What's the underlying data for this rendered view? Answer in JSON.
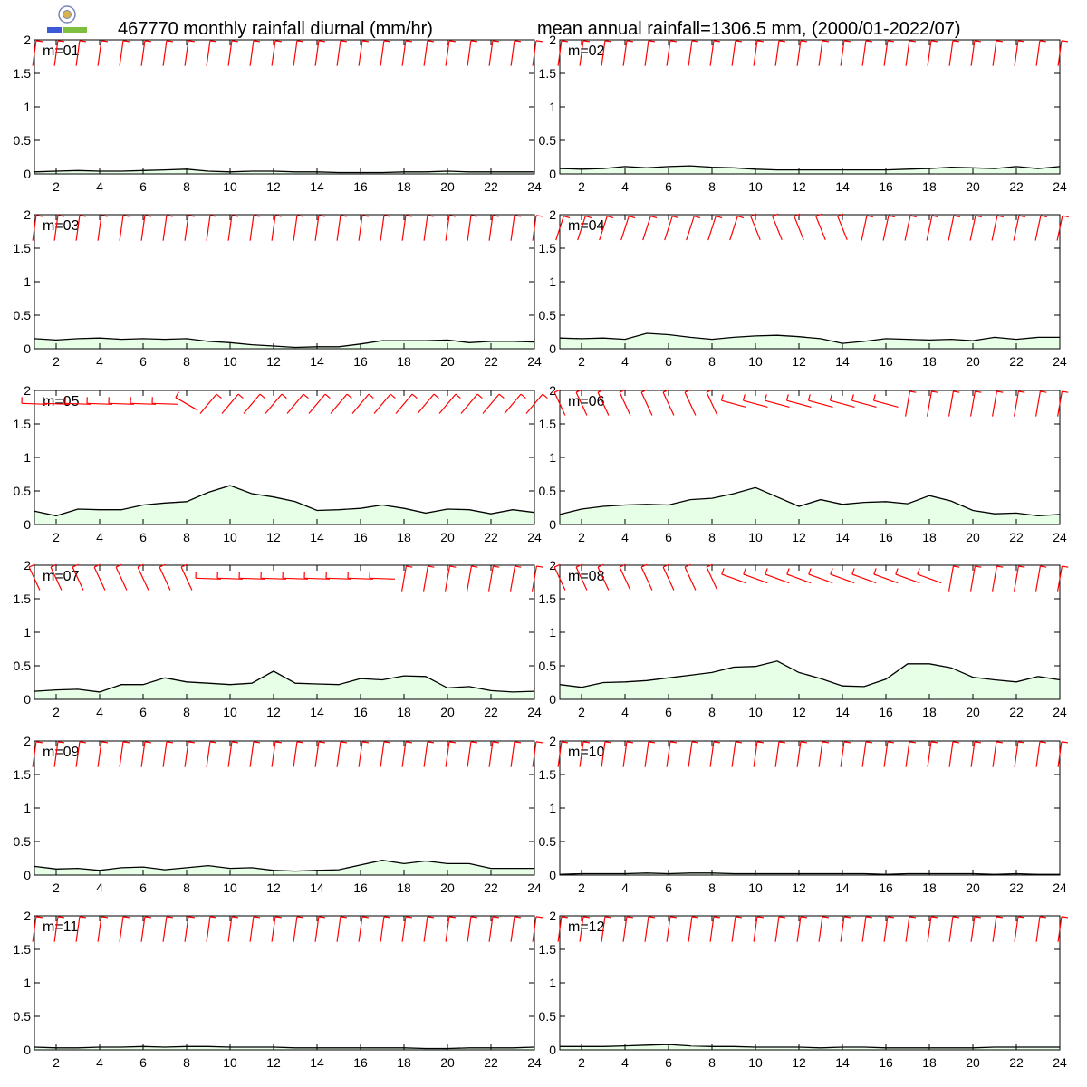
{
  "header": {
    "title_left": "467770 monthly rainfall diurnal (mm/hr)",
    "title_right": "mean annual rainfall=1306.5 mm, (2000/01-2022/07)"
  },
  "colors": {
    "fill": "#e6ffe6",
    "line": "#000000",
    "barb": "#ff0000"
  },
  "chart_data": {
    "type": "area",
    "x": [
      1,
      2,
      3,
      4,
      5,
      6,
      7,
      8,
      9,
      10,
      11,
      12,
      13,
      14,
      15,
      16,
      17,
      18,
      19,
      20,
      21,
      22,
      23,
      24
    ],
    "xticks": [
      2,
      4,
      6,
      8,
      10,
      12,
      14,
      16,
      18,
      20,
      22,
      24
    ],
    "yticks": [
      0,
      0.5,
      1,
      1.5,
      2
    ],
    "xlim": [
      1,
      24
    ],
    "ylim": [
      0,
      2
    ],
    "grid": false,
    "overlay": "red wind barbs near top of each panel",
    "panels": [
      {
        "label": "m=01",
        "values": [
          0.03,
          0.04,
          0.05,
          0.04,
          0.04,
          0.05,
          0.06,
          0.07,
          0.04,
          0.03,
          0.04,
          0.04,
          0.03,
          0.03,
          0.02,
          0.02,
          0.02,
          0.03,
          0.03,
          0.04,
          0.03,
          0.03,
          0.03,
          0.03
        ]
      },
      {
        "label": "m=02",
        "values": [
          0.08,
          0.07,
          0.08,
          0.11,
          0.09,
          0.11,
          0.12,
          0.1,
          0.09,
          0.07,
          0.06,
          0.06,
          0.06,
          0.06,
          0.06,
          0.06,
          0.07,
          0.08,
          0.1,
          0.09,
          0.08,
          0.11,
          0.08,
          0.11
        ]
      },
      {
        "label": "m=03",
        "values": [
          0.15,
          0.13,
          0.15,
          0.16,
          0.14,
          0.15,
          0.14,
          0.15,
          0.11,
          0.09,
          0.06,
          0.04,
          0.02,
          0.03,
          0.03,
          0.07,
          0.12,
          0.12,
          0.12,
          0.13,
          0.09,
          0.11,
          0.11,
          0.1
        ]
      },
      {
        "label": "m=04",
        "values": [
          0.16,
          0.15,
          0.16,
          0.14,
          0.23,
          0.21,
          0.17,
          0.14,
          0.17,
          0.19,
          0.2,
          0.18,
          0.15,
          0.08,
          0.11,
          0.15,
          0.14,
          0.13,
          0.14,
          0.12,
          0.17,
          0.14,
          0.17,
          0.17
        ]
      },
      {
        "label": "m=05",
        "values": [
          0.2,
          0.13,
          0.23,
          0.22,
          0.22,
          0.29,
          0.32,
          0.34,
          0.48,
          0.58,
          0.46,
          0.41,
          0.34,
          0.21,
          0.22,
          0.24,
          0.29,
          0.24,
          0.17,
          0.23,
          0.22,
          0.16,
          0.22,
          0.18
        ]
      },
      {
        "label": "m=06",
        "values": [
          0.15,
          0.23,
          0.27,
          0.29,
          0.3,
          0.29,
          0.37,
          0.39,
          0.46,
          0.55,
          0.41,
          0.27,
          0.37,
          0.3,
          0.33,
          0.34,
          0.31,
          0.43,
          0.35,
          0.21,
          0.16,
          0.17,
          0.13,
          0.15
        ]
      },
      {
        "label": "m=07",
        "values": [
          0.12,
          0.14,
          0.15,
          0.11,
          0.22,
          0.22,
          0.32,
          0.26,
          0.24,
          0.22,
          0.24,
          0.42,
          0.24,
          0.23,
          0.22,
          0.31,
          0.29,
          0.35,
          0.34,
          0.17,
          0.19,
          0.13,
          0.11,
          0.12
        ]
      },
      {
        "label": "m=08",
        "values": [
          0.22,
          0.18,
          0.25,
          0.26,
          0.28,
          0.32,
          0.36,
          0.4,
          0.48,
          0.49,
          0.57,
          0.4,
          0.31,
          0.2,
          0.19,
          0.3,
          0.53,
          0.53,
          0.47,
          0.33,
          0.29,
          0.26,
          0.34,
          0.29
        ]
      },
      {
        "label": "m=09",
        "values": [
          0.13,
          0.09,
          0.1,
          0.07,
          0.11,
          0.12,
          0.08,
          0.11,
          0.14,
          0.1,
          0.11,
          0.07,
          0.06,
          0.07,
          0.08,
          0.15,
          0.22,
          0.17,
          0.21,
          0.17,
          0.17,
          0.1,
          0.1,
          0.1
        ]
      },
      {
        "label": "m=10",
        "values": [
          0.01,
          0.02,
          0.02,
          0.02,
          0.03,
          0.02,
          0.03,
          0.03,
          0.02,
          0.02,
          0.02,
          0.02,
          0.02,
          0.02,
          0.02,
          0.01,
          0.02,
          0.02,
          0.02,
          0.02,
          0.01,
          0.02,
          0.01,
          0.01
        ]
      },
      {
        "label": "m=11",
        "values": [
          0.04,
          0.03,
          0.03,
          0.04,
          0.04,
          0.05,
          0.04,
          0.05,
          0.05,
          0.04,
          0.04,
          0.04,
          0.03,
          0.03,
          0.03,
          0.03,
          0.03,
          0.03,
          0.02,
          0.02,
          0.03,
          0.03,
          0.03,
          0.04
        ]
      },
      {
        "label": "m=12",
        "values": [
          0.05,
          0.05,
          0.05,
          0.06,
          0.07,
          0.08,
          0.06,
          0.05,
          0.05,
          0.04,
          0.04,
          0.04,
          0.03,
          0.04,
          0.04,
          0.03,
          0.03,
          0.03,
          0.03,
          0.03,
          0.04,
          0.04,
          0.04,
          0.04
        ]
      }
    ]
  }
}
